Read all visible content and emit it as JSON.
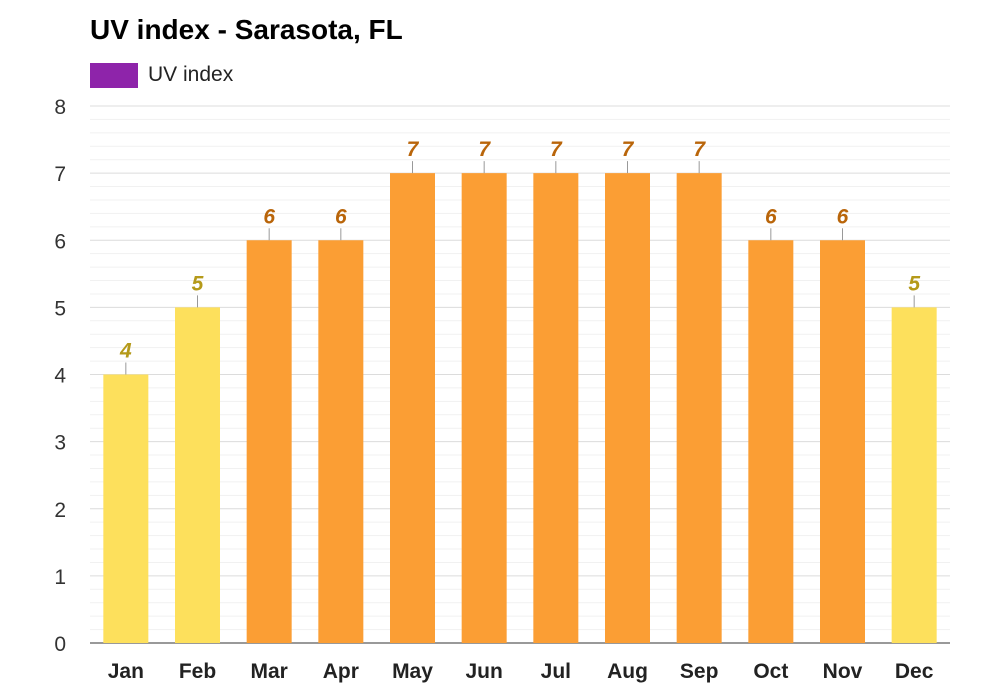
{
  "chart_data": {
    "type": "bar",
    "title": "UV index - Sarasota, FL",
    "categories": [
      "Jan",
      "Feb",
      "Mar",
      "Apr",
      "May",
      "Jun",
      "Jul",
      "Aug",
      "Sep",
      "Oct",
      "Nov",
      "Dec"
    ],
    "series": [
      {
        "name": "UV index",
        "values": [
          4,
          5,
          6,
          6,
          7,
          7,
          7,
          7,
          7,
          6,
          6,
          5
        ]
      }
    ],
    "xlabel": "",
    "ylabel": "",
    "ylim": [
      0,
      8
    ],
    "yticks": [
      "0",
      "1",
      "2",
      "3",
      "4",
      "5",
      "6",
      "7",
      "8"
    ],
    "grid": true,
    "legend_position": "top-left",
    "colors": {
      "legend": "#8e24aa",
      "moderate_bar": "#fde05c",
      "moderate_label": "#b59a1a",
      "high_bar": "#fb9e34",
      "high_label": "#b9650a"
    }
  }
}
